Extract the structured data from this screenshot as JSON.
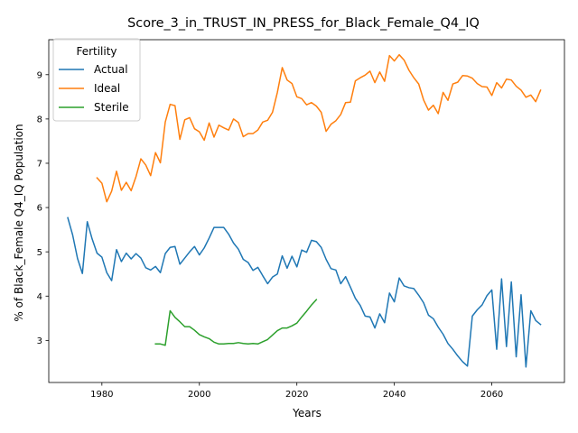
{
  "chart_data": {
    "type": "line",
    "title": "Score_3_in_TRUST_IN_PRESS_for_Black_Female_Q4_IQ",
    "xlabel": "Years",
    "ylabel": "% of Black_Female Q4_IQ Population",
    "xlim": [
      1969.1,
      2074.9
    ],
    "ylim": [
      2.05,
      9.79
    ],
    "xticks": [
      1980,
      2000,
      2020,
      2040,
      2060
    ],
    "yticks": [
      3,
      4,
      5,
      6,
      7,
      8,
      9
    ],
    "grid": false,
    "legend": {
      "title": "Fertility",
      "placement": "top-left"
    },
    "series": [
      {
        "name": "Actual",
        "color": "#1f77b4",
        "points": [
          [
            1973,
            5.77
          ],
          [
            1974,
            5.38
          ],
          [
            1975,
            4.85
          ],
          [
            1976,
            4.51
          ],
          [
            1977,
            5.68
          ],
          [
            1978,
            5.29
          ],
          [
            1979,
            4.97
          ],
          [
            1980,
            4.88
          ],
          [
            1981,
            4.53
          ],
          [
            1982,
            4.35
          ],
          [
            1983,
            5.05
          ],
          [
            1984,
            4.78
          ],
          [
            1985,
            4.97
          ],
          [
            1986,
            4.84
          ],
          [
            1987,
            4.96
          ],
          [
            1988,
            4.86
          ],
          [
            1989,
            4.64
          ],
          [
            1990,
            4.59
          ],
          [
            1991,
            4.67
          ],
          [
            1992,
            4.53
          ],
          [
            1993,
            4.96
          ],
          [
            1994,
            5.1
          ],
          [
            1995,
            5.12
          ],
          [
            1996,
            4.72
          ],
          [
            1997,
            4.86
          ],
          [
            1998,
            5.0
          ],
          [
            1999,
            5.12
          ],
          [
            2000,
            4.93
          ],
          [
            2001,
            5.09
          ],
          [
            2002,
            5.31
          ],
          [
            2003,
            5.55
          ],
          [
            2004,
            5.55
          ],
          [
            2005,
            5.55
          ],
          [
            2006,
            5.4
          ],
          [
            2007,
            5.2
          ],
          [
            2008,
            5.06
          ],
          [
            2009,
            4.83
          ],
          [
            2010,
            4.76
          ],
          [
            2011,
            4.58
          ],
          [
            2012,
            4.65
          ],
          [
            2013,
            4.46
          ],
          [
            2014,
            4.28
          ],
          [
            2015,
            4.43
          ],
          [
            2016,
            4.5
          ],
          [
            2017,
            4.91
          ],
          [
            2018,
            4.63
          ],
          [
            2019,
            4.9
          ],
          [
            2020,
            4.66
          ],
          [
            2021,
            5.04
          ],
          [
            2022,
            4.99
          ],
          [
            2023,
            5.26
          ],
          [
            2024,
            5.23
          ],
          [
            2025,
            5.1
          ],
          [
            2026,
            4.83
          ],
          [
            2027,
            4.62
          ],
          [
            2028,
            4.59
          ],
          [
            2029,
            4.28
          ],
          [
            2030,
            4.44
          ],
          [
            2031,
            4.2
          ],
          [
            2032,
            3.95
          ],
          [
            2033,
            3.79
          ],
          [
            2034,
            3.55
          ],
          [
            2035,
            3.53
          ],
          [
            2036,
            3.28
          ],
          [
            2037,
            3.6
          ],
          [
            2038,
            3.4
          ],
          [
            2039,
            4.07
          ],
          [
            2040,
            3.87
          ],
          [
            2041,
            4.41
          ],
          [
            2042,
            4.23
          ],
          [
            2043,
            4.19
          ],
          [
            2044,
            4.17
          ],
          [
            2045,
            4.02
          ],
          [
            2046,
            3.85
          ],
          [
            2047,
            3.57
          ],
          [
            2048,
            3.49
          ],
          [
            2049,
            3.3
          ],
          [
            2050,
            3.14
          ],
          [
            2051,
            2.93
          ],
          [
            2052,
            2.8
          ],
          [
            2053,
            2.65
          ],
          [
            2054,
            2.52
          ],
          [
            2055,
            2.42
          ],
          [
            2056,
            3.55
          ],
          [
            2057,
            3.69
          ],
          [
            2058,
            3.8
          ],
          [
            2059,
            4.01
          ],
          [
            2060,
            4.14
          ],
          [
            2061,
            2.8
          ],
          [
            2062,
            4.39
          ],
          [
            2063,
            2.86
          ],
          [
            2064,
            4.32
          ],
          [
            2065,
            2.63
          ],
          [
            2066,
            4.03
          ],
          [
            2067,
            2.4
          ],
          [
            2068,
            3.67
          ],
          [
            2069,
            3.45
          ],
          [
            2070,
            3.36
          ]
        ]
      },
      {
        "name": "Ideal",
        "color": "#ff7f0e",
        "points": [
          [
            1979,
            6.67
          ],
          [
            1980,
            6.55
          ],
          [
            1981,
            6.13
          ],
          [
            1982,
            6.37
          ],
          [
            1983,
            6.82
          ],
          [
            1984,
            6.39
          ],
          [
            1985,
            6.57
          ],
          [
            1986,
            6.38
          ],
          [
            1987,
            6.7
          ],
          [
            1988,
            7.1
          ],
          [
            1989,
            6.96
          ],
          [
            1990,
            6.72
          ],
          [
            1991,
            7.24
          ],
          [
            1992,
            7.01
          ],
          [
            1993,
            7.93
          ],
          [
            1994,
            8.33
          ],
          [
            1995,
            8.3
          ],
          [
            1996,
            7.54
          ],
          [
            1997,
            7.98
          ],
          [
            1998,
            8.03
          ],
          [
            1999,
            7.78
          ],
          [
            2000,
            7.71
          ],
          [
            2001,
            7.52
          ],
          [
            2002,
            7.91
          ],
          [
            2003,
            7.59
          ],
          [
            2004,
            7.86
          ],
          [
            2005,
            7.8
          ],
          [
            2006,
            7.75
          ],
          [
            2007,
            8.0
          ],
          [
            2008,
            7.92
          ],
          [
            2009,
            7.6
          ],
          [
            2010,
            7.67
          ],
          [
            2011,
            7.67
          ],
          [
            2012,
            7.75
          ],
          [
            2013,
            7.93
          ],
          [
            2014,
            7.97
          ],
          [
            2015,
            8.15
          ],
          [
            2016,
            8.6
          ],
          [
            2017,
            9.16
          ],
          [
            2018,
            8.88
          ],
          [
            2019,
            8.8
          ],
          [
            2020,
            8.5
          ],
          [
            2021,
            8.46
          ],
          [
            2022,
            8.32
          ],
          [
            2023,
            8.37
          ],
          [
            2024,
            8.29
          ],
          [
            2025,
            8.15
          ],
          [
            2026,
            7.72
          ],
          [
            2027,
            7.88
          ],
          [
            2028,
            7.96
          ],
          [
            2029,
            8.1
          ],
          [
            2030,
            8.37
          ],
          [
            2031,
            8.38
          ],
          [
            2032,
            8.86
          ],
          [
            2033,
            8.93
          ],
          [
            2034,
            8.99
          ],
          [
            2035,
            9.08
          ],
          [
            2036,
            8.82
          ],
          [
            2037,
            9.06
          ],
          [
            2038,
            8.85
          ],
          [
            2039,
            9.43
          ],
          [
            2040,
            9.31
          ],
          [
            2041,
            9.45
          ],
          [
            2042,
            9.33
          ],
          [
            2043,
            9.1
          ],
          [
            2044,
            8.93
          ],
          [
            2045,
            8.79
          ],
          [
            2046,
            8.43
          ],
          [
            2047,
            8.2
          ],
          [
            2048,
            8.31
          ],
          [
            2049,
            8.12
          ],
          [
            2050,
            8.6
          ],
          [
            2051,
            8.42
          ],
          [
            2052,
            8.79
          ],
          [
            2053,
            8.83
          ],
          [
            2054,
            8.98
          ],
          [
            2055,
            8.97
          ],
          [
            2056,
            8.92
          ],
          [
            2057,
            8.8
          ],
          [
            2058,
            8.73
          ],
          [
            2059,
            8.72
          ],
          [
            2060,
            8.53
          ],
          [
            2061,
            8.82
          ],
          [
            2062,
            8.7
          ],
          [
            2063,
            8.9
          ],
          [
            2064,
            8.88
          ],
          [
            2065,
            8.74
          ],
          [
            2066,
            8.65
          ],
          [
            2067,
            8.49
          ],
          [
            2068,
            8.54
          ],
          [
            2069,
            8.39
          ],
          [
            2070,
            8.65
          ]
        ]
      },
      {
        "name": "Sterile",
        "color": "#2ca02c",
        "points": [
          [
            1991,
            2.92
          ],
          [
            1992,
            2.92
          ],
          [
            1993,
            2.89
          ],
          [
            1994,
            3.67
          ],
          [
            1995,
            3.52
          ],
          [
            1996,
            3.42
          ],
          [
            1997,
            3.31
          ],
          [
            1998,
            3.31
          ],
          [
            1999,
            3.23
          ],
          [
            2000,
            3.13
          ],
          [
            2001,
            3.08
          ],
          [
            2002,
            3.04
          ],
          [
            2003,
            2.96
          ],
          [
            2004,
            2.92
          ],
          [
            2005,
            2.92
          ],
          [
            2006,
            2.93
          ],
          [
            2007,
            2.93
          ],
          [
            2008,
            2.95
          ],
          [
            2009,
            2.93
          ],
          [
            2010,
            2.92
          ],
          [
            2011,
            2.93
          ],
          [
            2012,
            2.92
          ],
          [
            2013,
            2.97
          ],
          [
            2014,
            3.02
          ],
          [
            2015,
            3.12
          ],
          [
            2016,
            3.22
          ],
          [
            2017,
            3.28
          ],
          [
            2018,
            3.28
          ],
          [
            2019,
            3.33
          ],
          [
            2020,
            3.39
          ],
          [
            2021,
            3.53
          ],
          [
            2022,
            3.66
          ],
          [
            2023,
            3.8
          ],
          [
            2024,
            3.92
          ]
        ]
      }
    ]
  }
}
